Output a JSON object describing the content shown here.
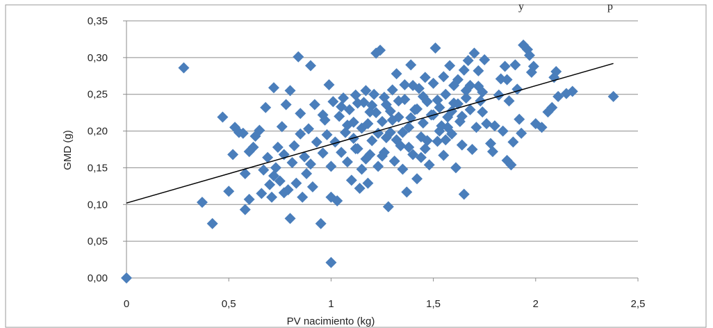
{
  "top_text_fragment": "y",
  "top_text_fragment_2": "p",
  "chart_data": {
    "type": "scatter",
    "title": "",
    "xlabel": "PV nacimiento (kg)",
    "ylabel": "GMD (g)",
    "xlim": [
      0,
      2.5
    ],
    "ylim": [
      0,
      0.35
    ],
    "x_ticks": [
      0,
      0.5,
      1,
      1.5,
      2,
      2.5
    ],
    "y_ticks": [
      0,
      0.05,
      0.1,
      0.15,
      0.2,
      0.25,
      0.3,
      0.35
    ],
    "x_tick_labels": [
      "0",
      "0,5",
      "1",
      "1,5",
      "2",
      "2,5"
    ],
    "y_tick_labels": [
      "0,00",
      "0,05",
      "0,10",
      "0,15",
      "0,20",
      "0,25",
      "0,30",
      "0,35"
    ],
    "grid": true,
    "legend": "none",
    "marker_color": "#4a7ebb",
    "trendline": {
      "x": [
        0,
        2.38
      ],
      "y": [
        0.102,
        0.292
      ],
      "color": "#000000"
    },
    "points": [
      [
        0.0,
        0.0
      ],
      [
        0.28,
        0.286
      ],
      [
        0.37,
        0.103
      ],
      [
        0.42,
        0.074
      ],
      [
        0.47,
        0.219
      ],
      [
        0.5,
        0.118
      ],
      [
        0.52,
        0.168
      ],
      [
        0.53,
        0.205
      ],
      [
        0.57,
        0.197
      ],
      [
        0.58,
        0.142
      ],
      [
        0.58,
        0.093
      ],
      [
        0.6,
        0.107
      ],
      [
        0.62,
        0.178
      ],
      [
        0.63,
        0.193
      ],
      [
        0.65,
        0.201
      ],
      [
        0.66,
        0.115
      ],
      [
        0.68,
        0.232
      ],
      [
        0.69,
        0.164
      ],
      [
        0.7,
        0.127
      ],
      [
        0.71,
        0.11
      ],
      [
        0.72,
        0.259
      ],
      [
        0.73,
        0.15
      ],
      [
        0.74,
        0.178
      ],
      [
        0.75,
        0.132
      ],
      [
        0.76,
        0.206
      ],
      [
        0.77,
        0.116
      ],
      [
        0.78,
        0.236
      ],
      [
        0.79,
        0.12
      ],
      [
        0.8,
        0.081
      ],
      [
        0.8,
        0.255
      ],
      [
        0.81,
        0.157
      ],
      [
        0.82,
        0.18
      ],
      [
        0.83,
        0.129
      ],
      [
        0.84,
        0.301
      ],
      [
        0.85,
        0.224
      ],
      [
        0.86,
        0.11
      ],
      [
        0.87,
        0.165
      ],
      [
        0.88,
        0.142
      ],
      [
        0.89,
        0.203
      ],
      [
        0.9,
        0.289
      ],
      [
        0.91,
        0.124
      ],
      [
        0.92,
        0.236
      ],
      [
        0.93,
        0.185
      ],
      [
        0.95,
        0.074
      ],
      [
        0.96,
        0.17
      ],
      [
        0.97,
        0.215
      ],
      [
        0.98,
        0.195
      ],
      [
        0.99,
        0.263
      ],
      [
        1.0,
        0.021
      ],
      [
        1.0,
        0.11
      ],
      [
        1.0,
        0.152
      ],
      [
        1.01,
        0.24
      ],
      [
        1.02,
        0.185
      ],
      [
        1.03,
        0.105
      ],
      [
        1.04,
        0.22
      ],
      [
        1.05,
        0.171
      ],
      [
        1.06,
        0.245
      ],
      [
        1.07,
        0.198
      ],
      [
        1.08,
        0.158
      ],
      [
        1.09,
        0.229
      ],
      [
        1.1,
        0.133
      ],
      [
        1.11,
        0.212
      ],
      [
        1.12,
        0.249
      ],
      [
        1.13,
        0.176
      ],
      [
        1.14,
        0.122
      ],
      [
        1.15,
        0.204
      ],
      [
        1.16,
        0.239
      ],
      [
        1.17,
        0.162
      ],
      [
        1.18,
        0.129
      ],
      [
        1.19,
        0.226
      ],
      [
        1.2,
        0.187
      ],
      [
        1.21,
        0.25
      ],
      [
        1.22,
        0.306
      ],
      [
        1.23,
        0.152
      ],
      [
        1.24,
        0.31
      ],
      [
        1.25,
        0.213
      ],
      [
        1.26,
        0.171
      ],
      [
        1.27,
        0.236
      ],
      [
        1.28,
        0.097
      ],
      [
        1.29,
        0.198
      ],
      [
        1.3,
        0.256
      ],
      [
        1.31,
        0.159
      ],
      [
        1.32,
        0.278
      ],
      [
        1.33,
        0.219
      ],
      [
        1.34,
        0.18
      ],
      [
        1.35,
        0.148
      ],
      [
        1.36,
        0.243
      ],
      [
        1.37,
        0.117
      ],
      [
        1.38,
        0.205
      ],
      [
        1.39,
        0.29
      ],
      [
        1.4,
        0.168
      ],
      [
        1.41,
        0.229
      ],
      [
        1.42,
        0.135
      ],
      [
        1.43,
        0.258
      ],
      [
        1.44,
        0.192
      ],
      [
        1.45,
        0.211
      ],
      [
        1.46,
        0.176
      ],
      [
        1.47,
        0.24
      ],
      [
        1.48,
        0.154
      ],
      [
        1.49,
        0.222
      ],
      [
        1.5,
        0.265
      ],
      [
        1.51,
        0.313
      ],
      [
        1.52,
        0.186
      ],
      [
        1.53,
        0.232
      ],
      [
        1.54,
        0.207
      ],
      [
        1.55,
        0.167
      ],
      [
        1.56,
        0.25
      ],
      [
        1.57,
        0.219
      ],
      [
        1.58,
        0.289
      ],
      [
        1.59,
        0.196
      ],
      [
        1.6,
        0.238
      ],
      [
        1.61,
        0.15
      ],
      [
        1.62,
        0.27
      ],
      [
        1.63,
        0.213
      ],
      [
        1.64,
        0.181
      ],
      [
        1.65,
        0.114
      ],
      [
        1.66,
        0.255
      ],
      [
        1.67,
        0.296
      ],
      [
        1.68,
        0.229
      ],
      [
        1.69,
        0.175
      ],
      [
        1.7,
        0.306
      ],
      [
        1.71,
        0.205
      ],
      [
        1.72,
        0.261
      ],
      [
        1.73,
        0.241
      ],
      [
        1.75,
        0.297
      ],
      [
        1.76,
        0.21
      ],
      [
        1.78,
        0.183
      ],
      [
        1.79,
        0.172
      ],
      [
        1.8,
        0.207
      ],
      [
        1.82,
        0.249
      ],
      [
        1.83,
        0.271
      ],
      [
        1.84,
        0.2
      ],
      [
        1.85,
        0.288
      ],
      [
        1.86,
        0.16
      ],
      [
        1.87,
        0.241
      ],
      [
        1.88,
        0.154
      ],
      [
        1.89,
        0.185
      ],
      [
        1.9,
        0.29
      ],
      [
        1.91,
        0.257
      ],
      [
        1.92,
        0.216
      ],
      [
        1.93,
        0.197
      ],
      [
        1.94,
        0.317
      ],
      [
        1.96,
        0.311
      ],
      [
        1.97,
        0.303
      ],
      [
        1.98,
        0.28
      ],
      [
        1.99,
        0.288
      ],
      [
        2.0,
        0.21
      ],
      [
        2.03,
        0.205
      ],
      [
        2.06,
        0.226
      ],
      [
        2.08,
        0.232
      ],
      [
        2.09,
        0.273
      ],
      [
        2.1,
        0.281
      ],
      [
        2.11,
        0.247
      ],
      [
        2.15,
        0.251
      ],
      [
        2.18,
        0.254
      ],
      [
        2.38,
        0.247
      ],
      [
        0.55,
        0.198
      ],
      [
        0.6,
        0.172
      ],
      [
        0.67,
        0.147
      ],
      [
        0.72,
        0.139
      ],
      [
        0.77,
        0.168
      ],
      [
        0.85,
        0.196
      ],
      [
        0.9,
        0.155
      ],
      [
        0.96,
        0.222
      ],
      [
        1.05,
        0.233
      ],
      [
        1.08,
        0.208
      ],
      [
        1.12,
        0.176
      ],
      [
        1.15,
        0.148
      ],
      [
        1.18,
        0.21
      ],
      [
        1.2,
        0.235
      ],
      [
        1.22,
        0.225
      ],
      [
        1.25,
        0.166
      ],
      [
        1.27,
        0.191
      ],
      [
        1.3,
        0.215
      ],
      [
        1.33,
        0.241
      ],
      [
        1.35,
        0.198
      ],
      [
        1.38,
        0.178
      ],
      [
        1.4,
        0.262
      ],
      [
        1.42,
        0.23
      ],
      [
        1.45,
        0.247
      ],
      [
        1.47,
        0.187
      ],
      [
        1.5,
        0.222
      ],
      [
        1.52,
        0.242
      ],
      [
        1.55,
        0.274
      ],
      [
        1.57,
        0.205
      ],
      [
        1.6,
        0.262
      ],
      [
        1.62,
        0.237
      ],
      [
        1.65,
        0.283
      ],
      [
        1.68,
        0.262
      ],
      [
        1.72,
        0.282
      ],
      [
        1.74,
        0.226
      ],
      [
        1.86,
        0.27
      ],
      [
        1.13,
        0.238
      ],
      [
        1.17,
        0.255
      ],
      [
        1.23,
        0.197
      ],
      [
        1.29,
        0.227
      ],
      [
        1.36,
        0.263
      ],
      [
        1.44,
        0.164
      ],
      [
        1.56,
        0.188
      ],
      [
        1.64,
        0.22
      ],
      [
        1.74,
        0.253
      ],
      [
        1.11,
        0.19
      ],
      [
        1.19,
        0.168
      ],
      [
        1.26,
        0.246
      ],
      [
        1.32,
        0.188
      ],
      [
        1.39,
        0.218
      ],
      [
        1.46,
        0.273
      ],
      [
        1.53,
        0.2
      ],
      [
        1.59,
        0.227
      ],
      [
        1.66,
        0.245
      ]
    ]
  }
}
